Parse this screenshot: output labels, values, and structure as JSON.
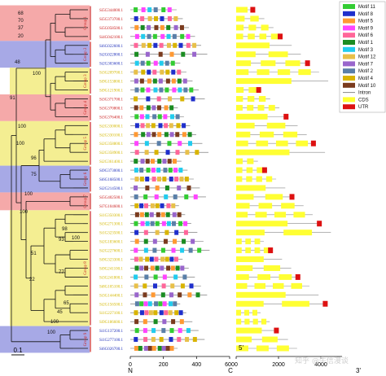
{
  "groups": [
    {
      "label": "Group 1",
      "color": "#f5a9a9"
    },
    {
      "label": "Group 2",
      "color": "#a7a9e6"
    },
    {
      "label": "Group 3",
      "color": "#f4ee92"
    },
    {
      "label": "Group 4",
      "color": "#f5a9a9"
    },
    {
      "label": "Group 5",
      "color": "#f4ee92"
    },
    {
      "label": "Group 6",
      "color": "#a7a9e6"
    },
    {
      "label": "Group 7",
      "color": "#f5a9a9"
    },
    {
      "label": "Group 8",
      "color": "#f4ee92"
    },
    {
      "label": "Group 9",
      "color": "#a7a9e6"
    }
  ],
  "genes": [
    {
      "id": "Si5G344000.1",
      "group": 0
    },
    {
      "id": "Si5G373700.1",
      "group": 0
    },
    {
      "id": "Si5G058500.1",
      "group": 0
    },
    {
      "id": "Si4G042100.1",
      "group": 0
    },
    {
      "id": "Si6G022600.1",
      "group": 1
    },
    {
      "id": "Si2G022800.1",
      "group": 1
    },
    {
      "id": "Si2G303600.1",
      "group": 1
    },
    {
      "id": "Si3G209700.1",
      "group": 2
    },
    {
      "id": "Si9G153800.1",
      "group": 2
    },
    {
      "id": "Si9G121900.1",
      "group": 2
    },
    {
      "id": "Si3G371700.1",
      "group": 3
    },
    {
      "id": "Si3G370800.1",
      "group": 3
    },
    {
      "id": "Si3G376400.1",
      "group": 3
    },
    {
      "id": "Si2G330000.1",
      "group": 4
    },
    {
      "id": "Si2G330100.1",
      "group": 4
    },
    {
      "id": "Si2G358800.1",
      "group": 4
    },
    {
      "id": "Si2G358900.1",
      "group": 4
    },
    {
      "id": "Si2G361400.1",
      "group": 4
    },
    {
      "id": "Si9G373000.1",
      "group": 5
    },
    {
      "id": "Si6G168500.1",
      "group": 5
    },
    {
      "id": "Si2G214500.1",
      "group": 5
    },
    {
      "id": "Si5G402500.1",
      "group": 6
    },
    {
      "id": "Si7G104600.1",
      "group": 6
    },
    {
      "id": "Si1G350300.1",
      "group": 7
    },
    {
      "id": "Si3G271300.1",
      "group": 7
    },
    {
      "id": "Si1G323500.1",
      "group": 7
    },
    {
      "id": "Si2G183600.1",
      "group": 7
    },
    {
      "id": "Si2G227600.1",
      "group": 7
    },
    {
      "id": "Si9G323300.1",
      "group": 7
    },
    {
      "id": "Si9G241100.1",
      "group": 7
    },
    {
      "id": "Si3G241800.1",
      "group": 7
    },
    {
      "id": "Si8G105100.1",
      "group": 7
    },
    {
      "id": "Si3G144400.1",
      "group": 7
    },
    {
      "id": "Si2G156500.1",
      "group": 7
    },
    {
      "id": "Si1G227100.1",
      "group": 7
    },
    {
      "id": "Si9G186600.1",
      "group": 7
    },
    {
      "id": "Si1G137200.1",
      "group": 8
    },
    {
      "id": "Si1G277100.1",
      "group": 8
    },
    {
      "id": "Si6G026700.1",
      "group": 8
    }
  ],
  "bootstrap": [
    {
      "value": "68"
    },
    {
      "value": "70"
    },
    {
      "value": "37"
    },
    {
      "value": "20"
    },
    {
      "value": "48"
    },
    {
      "value": "100"
    },
    {
      "value": "91"
    },
    {
      "value": "100"
    },
    {
      "value": "100"
    },
    {
      "value": "96"
    },
    {
      "value": "75"
    },
    {
      "value": "100"
    },
    {
      "value": "100"
    },
    {
      "value": "98"
    },
    {
      "value": "93"
    },
    {
      "value": "100"
    },
    {
      "value": "51"
    },
    {
      "value": "77"
    },
    {
      "value": "22"
    },
    {
      "value": "65"
    },
    {
      "value": "45"
    },
    {
      "value": "100"
    },
    {
      "value": "100"
    }
  ],
  "scale_bar": "0.1",
  "motif_axis": {
    "ticks": [
      "0",
      "200",
      "400",
      "600"
    ],
    "left_label": "N",
    "right_label": "C"
  },
  "gene_axis": {
    "ticks": [
      "0",
      "2000",
      "4000"
    ],
    "left_label": "5'",
    "right_label": "3'"
  },
  "legend": [
    {
      "name": "Motif 11",
      "color": "#33cc33",
      "kind": "box"
    },
    {
      "name": "Motif 8",
      "color": "#1f2fcc",
      "kind": "box"
    },
    {
      "name": "Motif 5",
      "color": "#ff9933",
      "kind": "box"
    },
    {
      "name": "Motif 9",
      "color": "#ff44ff",
      "kind": "box"
    },
    {
      "name": "Motif 6",
      "color": "#ff6699",
      "kind": "box"
    },
    {
      "name": "Motif 1",
      "color": "#1b8c22",
      "kind": "box"
    },
    {
      "name": "Motif 3",
      "color": "#22ccee",
      "kind": "box"
    },
    {
      "name": "Motif 12",
      "color": "#e8c04a",
      "kind": "box"
    },
    {
      "name": "Motif 7",
      "color": "#9966cc",
      "kind": "box"
    },
    {
      "name": "Motif 2",
      "color": "#5a7fa8",
      "kind": "box"
    },
    {
      "name": "Motif 4",
      "color": "#d9b400",
      "kind": "box"
    },
    {
      "name": "Motif 10",
      "color": "#7a3b1e",
      "kind": "box"
    },
    {
      "name": "Intron",
      "color": "#888888",
      "kind": "line"
    },
    {
      "name": "CDS",
      "color": "#ffff33",
      "kind": "box"
    },
    {
      "name": "UTR",
      "color": "#dd1111",
      "kind": "box"
    }
  ],
  "watermark": "知乎 @牛信漫谈"
}
